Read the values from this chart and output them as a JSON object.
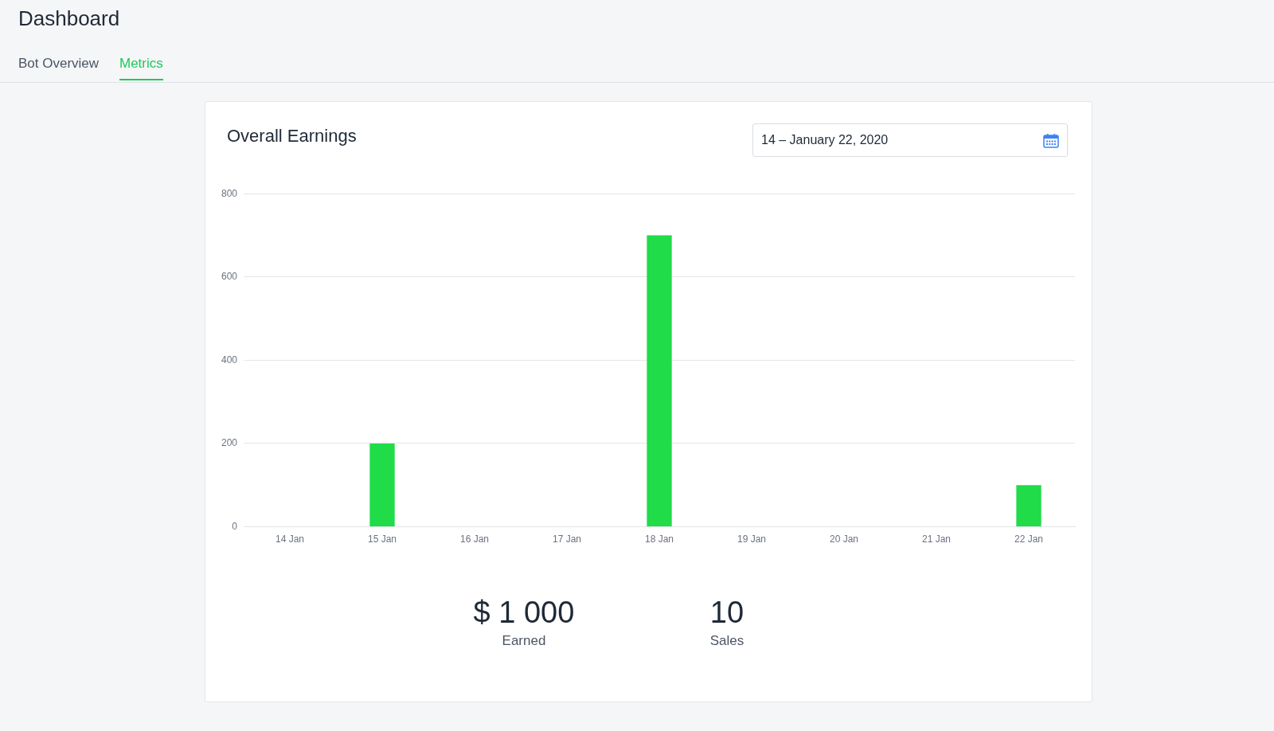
{
  "chart_data": {
    "type": "bar",
    "title": "Overall Earnings",
    "categories": [
      "14 Jan",
      "15 Jan",
      "16 Jan",
      "17 Jan",
      "18 Jan",
      "19 Jan",
      "20 Jan",
      "21 Jan",
      "22 Jan"
    ],
    "values": [
      0,
      200,
      0,
      0,
      700,
      0,
      0,
      0,
      100
    ],
    "color": "#1fdc48",
    "ylim": [
      0,
      800
    ],
    "yticks": [
      0,
      200,
      400,
      600,
      800
    ],
    "grid": "y",
    "annotations": [
      "Dashboard",
      "Bot Overview",
      "Metrics",
      "14 – January 22, 2020",
      "$ 1 000",
      "Earned",
      "10",
      "Sales"
    ]
  }
}
